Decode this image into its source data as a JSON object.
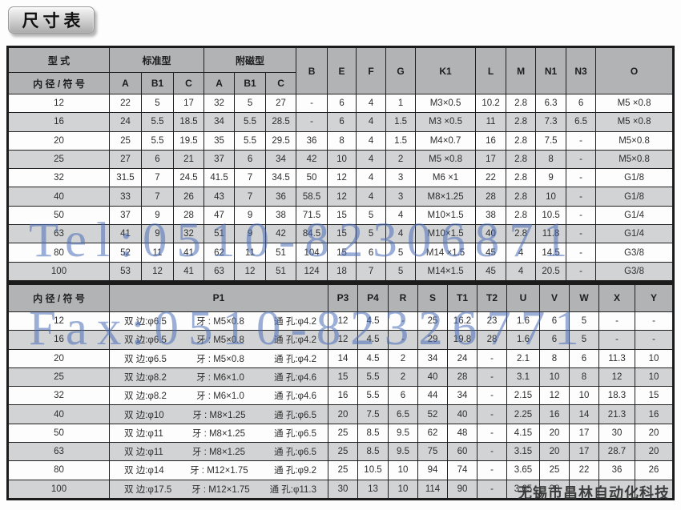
{
  "title": "尺寸表",
  "watermarks": {
    "tel": "Tel:0510-82306871",
    "fax": "Fax:0510-82326771",
    "company": "无锡市昌林自动化科技"
  },
  "table_top": {
    "header": {
      "type": "型 式",
      "bore": "内 径 / 符 号",
      "standard": "标准型",
      "magnetic": "附磁型",
      "sub_cols": [
        "A",
        "B1",
        "C",
        "A",
        "B1",
        "C"
      ],
      "span_cols": [
        "B",
        "E",
        "F",
        "G",
        "K1",
        "L",
        "M",
        "N1",
        "N3",
        "O"
      ]
    },
    "rows": [
      {
        "bore": "12",
        "values": [
          "22",
          "5",
          "17",
          "32",
          "5",
          "27",
          "-",
          "6",
          "4",
          "1",
          "M3×0.5",
          "10.2",
          "2.8",
          "6.3",
          "6",
          "M5 ×0.8"
        ]
      },
      {
        "bore": "16",
        "values": [
          "24",
          "5.5",
          "18.5",
          "34",
          "5.5",
          "28.5",
          "-",
          "6",
          "4",
          "1.5",
          "M3 ×0.5",
          "11",
          "2.8",
          "7.3",
          "6.5",
          "M5 ×0.8"
        ]
      },
      {
        "bore": "20",
        "values": [
          "25",
          "5.5",
          "19.5",
          "35",
          "5.5",
          "29.5",
          "36",
          "8",
          "4",
          "1.5",
          "M4×0.7",
          "16",
          "2.8",
          "7.5",
          "-",
          "M5×0.8"
        ]
      },
      {
        "bore": "25",
        "values": [
          "27",
          "6",
          "21",
          "37",
          "6",
          "34",
          "42",
          "10",
          "4",
          "2",
          "M5 ×0.8",
          "17",
          "2.8",
          "8",
          "-",
          "M5×0.8"
        ]
      },
      {
        "bore": "32",
        "values": [
          "31.5",
          "7",
          "24.5",
          "41.5",
          "7",
          "34.5",
          "50",
          "12",
          "4",
          "3",
          "M6 ×1",
          "22",
          "2.8",
          "9",
          "-",
          "G1/8"
        ]
      },
      {
        "bore": "40",
        "values": [
          "33",
          "7",
          "26",
          "43",
          "7",
          "36",
          "58.5",
          "12",
          "4",
          "3",
          "M8×1.25",
          "28",
          "2.8",
          "10",
          "-",
          "G1/8"
        ]
      },
      {
        "bore": "50",
        "values": [
          "37",
          "9",
          "28",
          "47",
          "9",
          "38",
          "71.5",
          "15",
          "5",
          "4",
          "M10×1.5",
          "38",
          "2.8",
          "10.5",
          "-",
          "G1/4"
        ]
      },
      {
        "bore": "63",
        "values": [
          "41",
          "9",
          "32",
          "51",
          "9",
          "42",
          "84.5",
          "15",
          "5",
          "4",
          "M10×1.5",
          "40",
          "2.8",
          "11.8",
          "-",
          "G1/4"
        ]
      },
      {
        "bore": "80",
        "values": [
          "52",
          "11",
          "41",
          "62",
          "11",
          "51",
          "104",
          "15",
          "6",
          "5",
          "M14 ×1.5",
          "45",
          "4",
          "14.5",
          "-",
          "G3/8"
        ]
      },
      {
        "bore": "100",
        "values": [
          "53",
          "12",
          "41",
          "63",
          "12",
          "51",
          "124",
          "18",
          "7",
          "5",
          "M14×1.5",
          "45",
          "4",
          "20.5",
          "-",
          "G3/8"
        ]
      }
    ]
  },
  "table_bottom": {
    "header": {
      "bore": "内 径 / 符 号",
      "p1": "P1",
      "cols": [
        "P3",
        "P4",
        "R",
        "S",
        "T1",
        "T2",
        "U",
        "V",
        "W",
        "X",
        "Y"
      ]
    },
    "rows": [
      {
        "bore": "12",
        "p1": {
          "side": "双 边:φ6.5",
          "thread": "牙 : M5×0.8",
          "hole": "通 孔:φ4.2"
        },
        "values": [
          "12",
          "4.5",
          "-",
          "25",
          "16.2",
          "23",
          "1.6",
          "6",
          "5",
          "-",
          "-"
        ]
      },
      {
        "bore": "16",
        "p1": {
          "side": "双 边:φ6.5",
          "thread": "牙 : M5×0.8",
          "hole": "通 孔:φ4.2"
        },
        "values": [
          "12",
          "4.5",
          "-",
          "29",
          "19.8",
          "28",
          "1.6",
          "6",
          "5",
          "-",
          "-"
        ]
      },
      {
        "bore": "20",
        "p1": {
          "side": "双 边:φ6.5",
          "thread": "牙 : M5×0.8",
          "hole": "通 孔:φ4.2"
        },
        "values": [
          "14",
          "4.5",
          "2",
          "34",
          "24",
          "-",
          "2.1",
          "8",
          "6",
          "11.3",
          "10"
        ]
      },
      {
        "bore": "25",
        "p1": {
          "side": "双 边:φ8.2",
          "thread": "牙 : M6×1.0",
          "hole": "通 孔:φ4.6"
        },
        "values": [
          "15",
          "5.5",
          "2",
          "40",
          "28",
          "-",
          "3.1",
          "10",
          "8",
          "12",
          "10"
        ]
      },
      {
        "bore": "32",
        "p1": {
          "side": "双 边:φ8.2",
          "thread": "牙 : M6×1.0",
          "hole": "通 孔:φ4.6"
        },
        "values": [
          "16",
          "5.5",
          "6",
          "44",
          "34",
          "-",
          "2.15",
          "12",
          "10",
          "18.3",
          "15"
        ]
      },
      {
        "bore": "40",
        "p1": {
          "side": "双 边:φ10",
          "thread": "牙 : M8×1.25",
          "hole": "通 孔:φ6.5"
        },
        "values": [
          "20",
          "7.5",
          "6.5",
          "52",
          "40",
          "-",
          "2.25",
          "16",
          "14",
          "21.3",
          "16"
        ]
      },
      {
        "bore": "50",
        "p1": {
          "side": "双 边:φ11",
          "thread": "牙 : M8×1.25",
          "hole": "通 孔:φ6.5"
        },
        "values": [
          "25",
          "8.5",
          "9.5",
          "62",
          "48",
          "-",
          "4.15",
          "20",
          "17",
          "30",
          "20"
        ]
      },
      {
        "bore": "63",
        "p1": {
          "side": "双 边:φ11",
          "thread": "牙 : M8×1.25",
          "hole": "通 孔:φ6.5"
        },
        "values": [
          "25",
          "8.5",
          "9.5",
          "75",
          "60",
          "-",
          "3.15",
          "20",
          "17",
          "28.7",
          "20"
        ]
      },
      {
        "bore": "80",
        "p1": {
          "side": "双 边:φ14",
          "thread": "牙 : M12×1.75",
          "hole": "通 孔:φ9.2"
        },
        "values": [
          "25",
          "10.5",
          "10",
          "94",
          "74",
          "-",
          "3.65",
          "25",
          "22",
          "36",
          "26"
        ]
      },
      {
        "bore": "100",
        "p1": {
          "side": "双 边:φ17.5",
          "thread": "牙 : M12×1.75",
          "hole": "通 孔:φ11.3"
        },
        "values": [
          "30",
          "13",
          "10",
          "114",
          "90",
          "-",
          "3.65",
          "28",
          "",
          "",
          ""
        ]
      }
    ]
  }
}
